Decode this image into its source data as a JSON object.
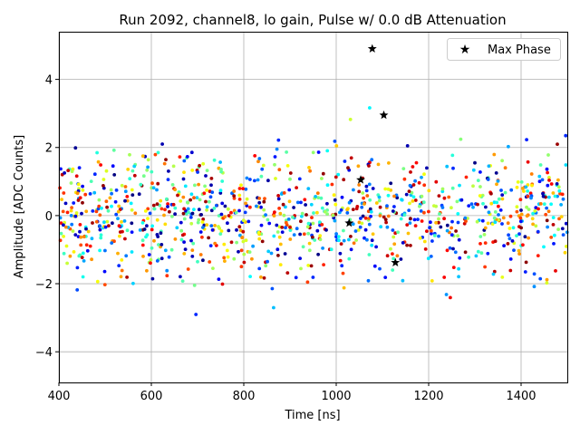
{
  "chart_data": {
    "type": "scatter",
    "title": "Run 2092, channel8, lo gain, Pulse w/ 0.0 dB Attenuation",
    "xlabel": "Time [ns]",
    "ylabel": "Amplitude [ADC Counts]",
    "xlim": [
      400,
      1500
    ],
    "ylim": [
      -4.9,
      5.4
    ],
    "xticks": [
      400,
      600,
      800,
      1000,
      1200,
      1400
    ],
    "yticks": [
      -4,
      -2,
      0,
      2,
      4
    ],
    "grid": true,
    "legend_position": "top-right",
    "colormap": "jet",
    "series": [
      {
        "name": "Max Phase",
        "marker": "star",
        "color": "#000000",
        "points": [
          {
            "x": 1078,
            "y": 4.9
          },
          {
            "x": 1103,
            "y": 2.95
          },
          {
            "x": 1053,
            "y": 1.05
          },
          {
            "x": 1028,
            "y": -0.22
          },
          {
            "x": 1128,
            "y": -1.38
          }
        ]
      }
    ],
    "scatter_cloud": {
      "description_note": "",
      "x_range": [
        400,
        1500
      ],
      "y_center": 0.0,
      "spread": 0.9,
      "point_count": 1100
    }
  }
}
